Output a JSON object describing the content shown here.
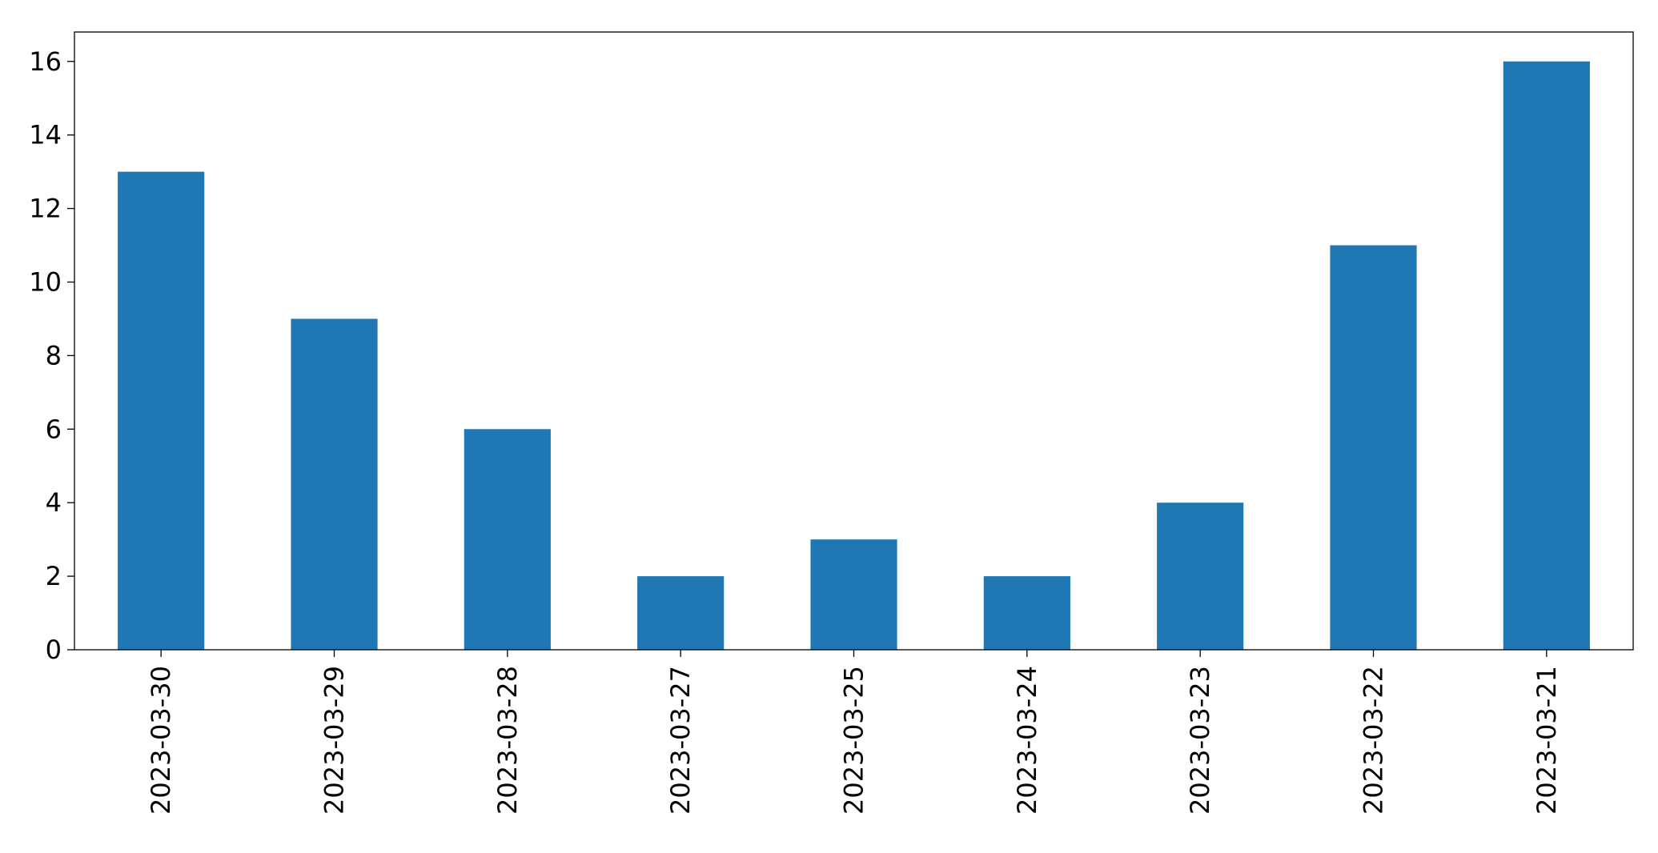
{
  "chart_data": {
    "type": "bar",
    "title": "",
    "xlabel": "",
    "ylabel": "",
    "categories": [
      "2023-03-30",
      "2023-03-29",
      "2023-03-28",
      "2023-03-27",
      "2023-03-25",
      "2023-03-24",
      "2023-03-23",
      "2023-03-22",
      "2023-03-21"
    ],
    "values": [
      13,
      9,
      6,
      2,
      3,
      2,
      4,
      11,
      16
    ],
    "ylim": [
      0,
      16.8
    ],
    "yticks": [
      0,
      2,
      4,
      6,
      8,
      10,
      12,
      14,
      16
    ],
    "grid": false,
    "legend": "none",
    "bar_color": "#1f77b4"
  }
}
